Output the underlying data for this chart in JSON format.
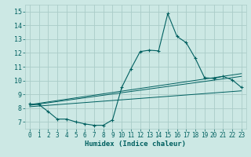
{
  "title": "",
  "xlabel": "Humidex (Indice chaleur)",
  "xlim": [
    -0.5,
    23.5
  ],
  "ylim": [
    6.5,
    15.5
  ],
  "xticks": [
    0,
    1,
    2,
    3,
    4,
    5,
    6,
    7,
    8,
    9,
    10,
    11,
    12,
    13,
    14,
    15,
    16,
    17,
    18,
    19,
    20,
    21,
    22,
    23
  ],
  "yticks": [
    7,
    8,
    9,
    10,
    11,
    12,
    13,
    14,
    15
  ],
  "bg_color": "#cce8e4",
  "grid_color": "#aaccc8",
  "line_color": "#006060",
  "main_series_x": [
    0,
    1,
    2,
    3,
    4,
    5,
    6,
    7,
    8,
    9,
    10,
    11,
    12,
    13,
    14,
    15,
    16,
    17,
    18,
    19,
    20,
    21,
    22,
    23
  ],
  "main_series_y": [
    8.3,
    8.25,
    7.75,
    7.2,
    7.2,
    7.0,
    6.85,
    6.75,
    6.75,
    7.15,
    9.5,
    10.85,
    12.1,
    12.2,
    12.15,
    14.85,
    13.2,
    12.75,
    11.6,
    10.2,
    10.15,
    10.3,
    10.05,
    9.5
  ],
  "line1_x": [
    0,
    23
  ],
  "line1_y": [
    8.1,
    9.25
  ],
  "line2_x": [
    0,
    23
  ],
  "line2_y": [
    8.2,
    10.3
  ],
  "line3_x": [
    0,
    23
  ],
  "line3_y": [
    8.25,
    10.5
  ]
}
